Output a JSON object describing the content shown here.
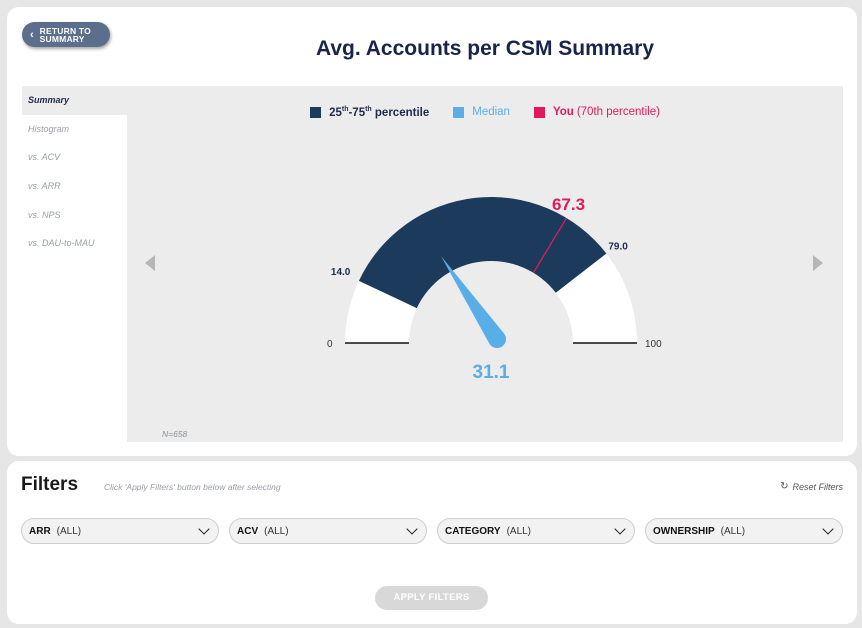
{
  "header": {
    "return_label": "RETURN TO SUMMARY",
    "title": "Avg. Accounts per CSM Summary"
  },
  "sidebar": {
    "items": [
      {
        "label": "Summary",
        "active": true
      },
      {
        "label": "Histogram",
        "active": false
      },
      {
        "label": "vs. ACV",
        "active": false
      },
      {
        "label": "vs. ARR",
        "active": false
      },
      {
        "label": "vs. NPS",
        "active": false
      },
      {
        "label": "vs. DAU-to-MAU",
        "active": false
      }
    ]
  },
  "legend": {
    "band_prefix": "25",
    "band_sup1": "th",
    "band_mid": "-75",
    "band_sup2": "th",
    "band_suffix": " percentile",
    "median_label": "Median",
    "you_label": "You",
    "you_detail": "(70th percentile)"
  },
  "chart_data": {
    "type": "gauge",
    "min": 0,
    "max": 100,
    "min_label": "0",
    "max_label": "100",
    "band": {
      "low": 14.0,
      "high": 79.0,
      "low_label": "14.0",
      "high_label": "79.0"
    },
    "median": {
      "value": 31.1,
      "label": "31.1"
    },
    "you": {
      "value": 67.3,
      "label": "67.3",
      "percentile": 70
    },
    "colors": {
      "band": "#1b3a5c",
      "median": "#5aaee8",
      "you": "#e0195f",
      "track": "#ffffff"
    }
  },
  "sample": {
    "label": "N=658"
  },
  "filters": {
    "title": "Filters",
    "hint": "Click 'Apply Filters' button below after selecting",
    "reset_label": "Reset Filters",
    "dropdowns": [
      {
        "key": "ARR",
        "value": "(ALL)"
      },
      {
        "key": "ACV",
        "value": "(ALL)"
      },
      {
        "key": "CATEGORY",
        "value": "(ALL)"
      },
      {
        "key": "OWNERSHIP",
        "value": "(ALL)"
      }
    ],
    "apply_label": "APPLY FILTERS"
  },
  "icons": {
    "back": "chevron-left-icon",
    "prev": "triangle-left-icon",
    "next": "triangle-right-icon",
    "reset": "refresh-icon",
    "dropdown": "chevron-down-icon"
  }
}
